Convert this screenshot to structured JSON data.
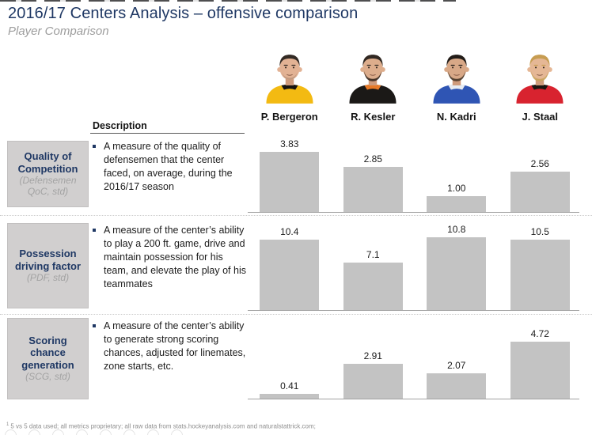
{
  "slide": {
    "title": "2016/17 Centers Analysis – offensive comparison",
    "subtitle": "Player Comparison",
    "footnote_marker": "1",
    "footnote_text": "5 vs 5 data used; all metrics proprietary; all raw data from stats.hockeyanalysis.com and naturalstattrick.com;"
  },
  "table": {
    "description_header": "Description"
  },
  "accent_colors": {
    "heading_navy": "#1f3864",
    "box_gray": "#d1cfcf",
    "bar_gray": "#c3c3c3",
    "sublabel_gray": "#a3a3a3"
  },
  "players": [
    {
      "name": "P. Bergeron",
      "colors": {
        "jersey": "#f3ba12",
        "collar": "#151310",
        "hair": "#332a24",
        "beard": "",
        "skin": "#e2b294"
      }
    },
    {
      "name": "R. Kesler",
      "colors": {
        "jersey": "#1b1917",
        "collar": "#e87a28",
        "hair": "#312822",
        "beard": "#38291f",
        "skin": "#ddad8c"
      }
    },
    {
      "name": "N. Kadri",
      "colors": {
        "jersey": "#2f55b4",
        "collar": "#e8ecf2",
        "hair": "#221c18",
        "beard": "#4a3728",
        "skin": "#d8a887"
      }
    },
    {
      "name": "J. Staal",
      "colors": {
        "jersey": "#d8232f",
        "collar": "#1a1512",
        "hair": "#c79d52",
        "beard": "#c9a45e",
        "skin": "#e5b795"
      }
    }
  ],
  "metrics": [
    {
      "label": "Quality of Competition",
      "sublabel": "(Defensemen QoC, std)",
      "description": "A measure of the quality of defensemen that the center faced, on average, during the 2016/17 season",
      "values": [
        3.83,
        2.85,
        1.0,
        2.56
      ],
      "value_labels": [
        "3.83",
        "2.85",
        "1.00",
        "2.56"
      ]
    },
    {
      "label": "Possession driving factor",
      "sublabel": "(PDF, std)",
      "description": "A measure of the center’s ability to play a 200 ft. game, drive and maintain possession for his team, and elevate the play of his teammates",
      "values": [
        10.4,
        7.1,
        10.8,
        10.5
      ],
      "value_labels": [
        "10.4",
        "7.1",
        "10.8",
        "10.5"
      ]
    },
    {
      "label": "Scoring chance generation",
      "sublabel": "(SCG, std)",
      "description": "A measure of the center’s ability to generate strong scoring chances, adjusted for linemates, zone starts, etc.",
      "values": [
        0.41,
        2.91,
        2.07,
        4.72
      ],
      "value_labels": [
        "0.41",
        "2.91",
        "2.07",
        "4.72"
      ]
    }
  ],
  "chart_data": [
    {
      "type": "bar",
      "title": "Quality of Competition (Defensemen QoC, std)",
      "categories": [
        "P. Bergeron",
        "R. Kesler",
        "N. Kadri",
        "J. Staal"
      ],
      "values": [
        3.83,
        2.85,
        1.0,
        2.56
      ],
      "xlabel": "",
      "ylabel": "",
      "data_labels": true,
      "axis_visible": false,
      "bar_color": "#c3c3c3"
    },
    {
      "type": "bar",
      "title": "Possession driving factor (PDF, std)",
      "categories": [
        "P. Bergeron",
        "R. Kesler",
        "N. Kadri",
        "J. Staal"
      ],
      "values": [
        10.4,
        7.1,
        10.8,
        10.5
      ],
      "xlabel": "",
      "ylabel": "",
      "data_labels": true,
      "axis_visible": false,
      "bar_color": "#c3c3c3"
    },
    {
      "type": "bar",
      "title": "Scoring chance generation (SCG, std)",
      "categories": [
        "P. Bergeron",
        "R. Kesler",
        "N. Kadri",
        "J. Staal"
      ],
      "values": [
        0.41,
        2.91,
        2.07,
        4.72
      ],
      "xlabel": "",
      "ylabel": "",
      "data_labels": true,
      "axis_visible": false,
      "bar_color": "#c3c3c3"
    }
  ]
}
